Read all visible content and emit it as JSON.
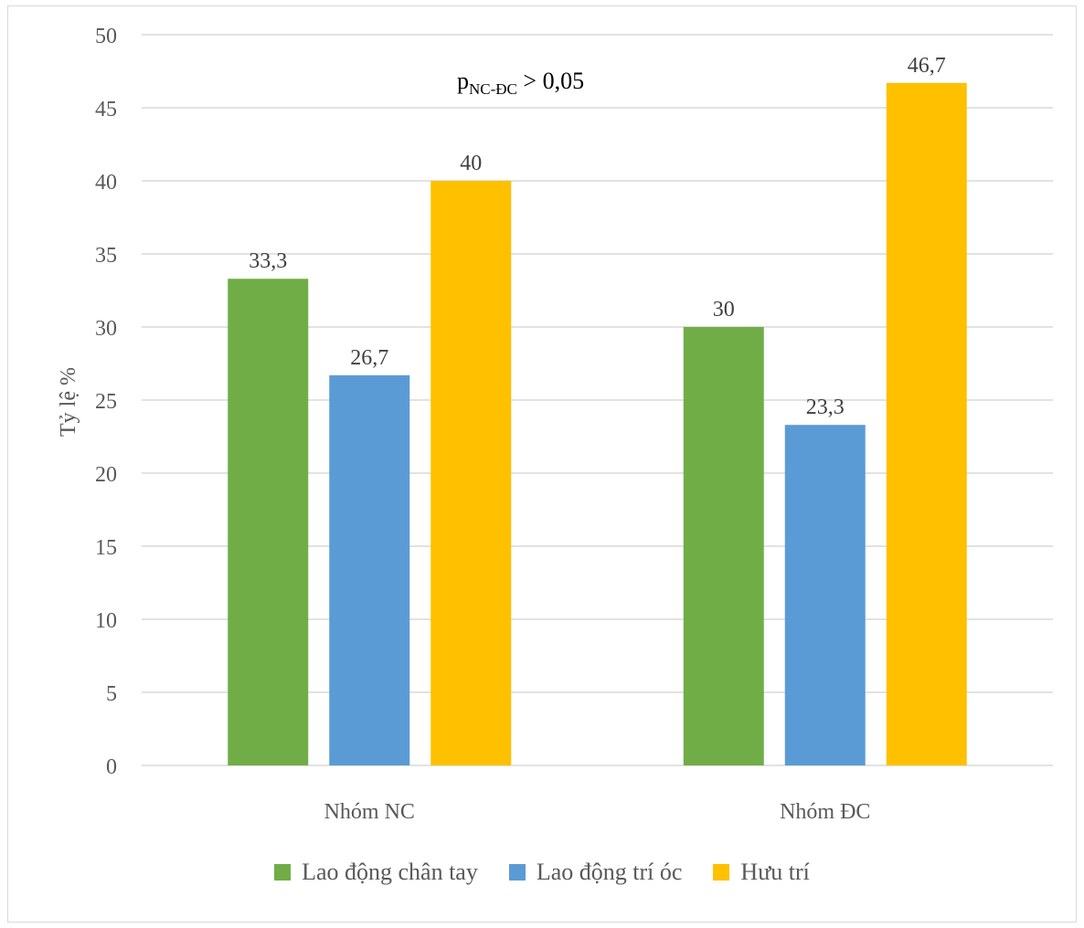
{
  "chart_data": {
    "type": "bar",
    "categories": [
      "Nhóm NC",
      "Nhóm ĐC"
    ],
    "series": [
      {
        "name": "Lao động chân tay",
        "values": [
          33.3,
          30
        ],
        "labels": [
          "33,3",
          "30"
        ],
        "color": "#70ad47"
      },
      {
        "name": "Lao động trí óc",
        "values": [
          26.7,
          23.3
        ],
        "labels": [
          "26,7",
          "23,3"
        ],
        "color": "#5b9bd5"
      },
      {
        "name": "Hưu trí",
        "values": [
          40,
          46.7
        ],
        "labels": [
          "40",
          "46,7"
        ],
        "color": "#ffc000"
      }
    ],
    "ylabel": "Tỷ lệ %",
    "xlabel": "",
    "ylim": [
      0,
      50
    ],
    "yticks": [
      "0",
      "5",
      "10",
      "15",
      "20",
      "25",
      "30",
      "35",
      "40",
      "45",
      "50"
    ],
    "grid": true,
    "legend_position": "bottom",
    "annotation": {
      "main": "p",
      "subscript": "NC-ĐC",
      "rest": " > 0,05"
    }
  }
}
